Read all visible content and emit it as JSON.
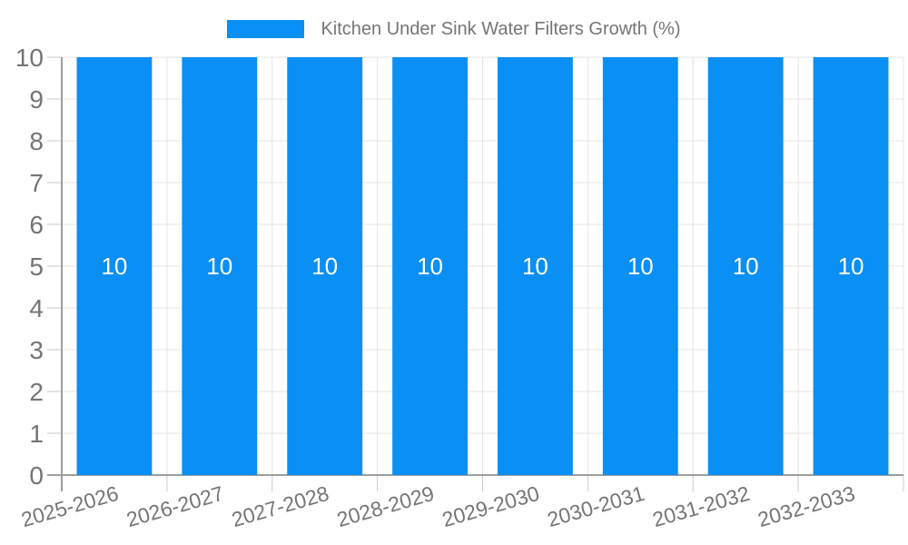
{
  "chart_data": {
    "type": "bar",
    "title": "Kitchen Under Sink Water Filters Growth (%)",
    "categories": [
      "2025-2026",
      "2026-2027",
      "2027-2028",
      "2028-2029",
      "2029-2030",
      "2030-2031",
      "2031-2032",
      "2032-2033"
    ],
    "series": [
      {
        "name": "Kitchen Under Sink Water Filters Growth (%)",
        "values": [
          10,
          10,
          10,
          10,
          10,
          10,
          10,
          10
        ]
      }
    ],
    "bar_value_labels": [
      "10",
      "10",
      "10",
      "10",
      "10",
      "10",
      "10",
      "10"
    ],
    "xlabel": "",
    "ylabel": "",
    "ylim": [
      0,
      10
    ],
    "yticks": [
      "0",
      "1",
      "2",
      "3",
      "4",
      "5",
      "6",
      "7",
      "8",
      "9",
      "10"
    ],
    "grid": true,
    "legend_position": "top-center",
    "x_tick_label_rotation_deg": -16,
    "colors": {
      "bar": "#0a8ff5",
      "bar_label": "#ffffff",
      "axis_text": "#757575",
      "grid": "#e4e4e4",
      "axis_line": "#9e9e9e",
      "tick": "#cccccc",
      "background": "#ffffff"
    }
  }
}
